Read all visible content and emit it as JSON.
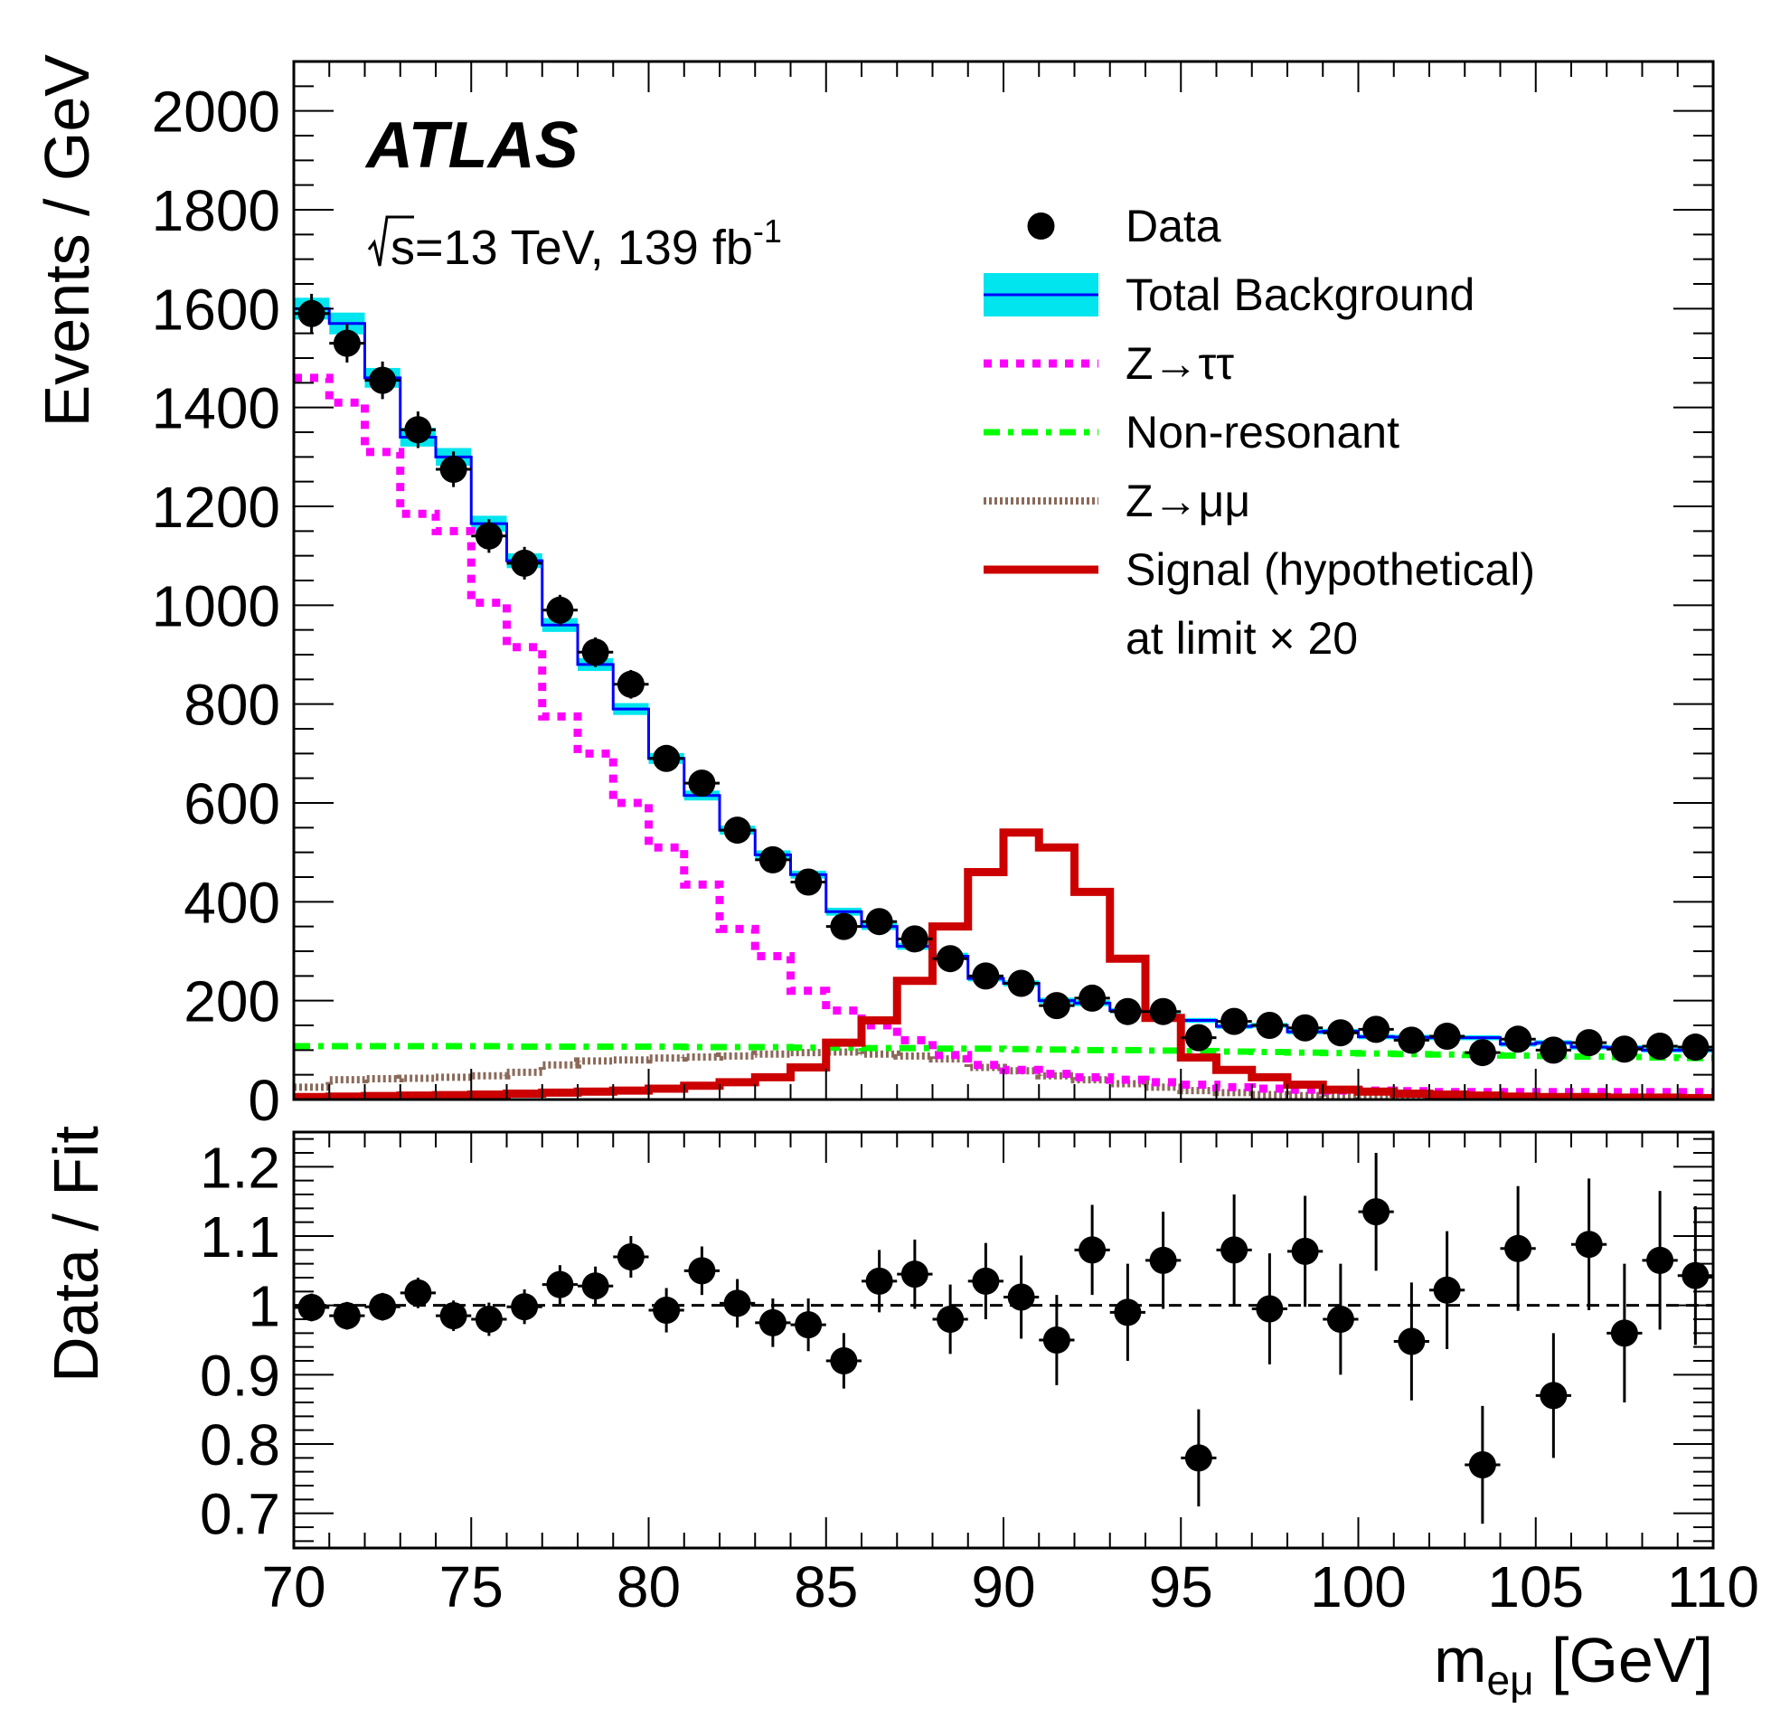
{
  "chart_data": [
    {
      "type": "line",
      "panel": "main",
      "experiment_label": "ATLAS",
      "energy_prefix": "s=13 TeV, 139 fb",
      "energy_superscript": "-1",
      "ylabel": "Events / GeV",
      "xlabel": "",
      "xlim": [
        70,
        110
      ],
      "ylim": [
        0,
        2100
      ],
      "y_ticks": [
        "0",
        "200",
        "400",
        "600",
        "800",
        "1000",
        "1200",
        "1400",
        "1600",
        "1800",
        "2000"
      ],
      "legend_position": "top-right",
      "bin_edges": [
        70,
        71,
        72,
        73,
        74,
        75,
        76,
        77,
        78,
        79,
        80,
        81,
        82,
        83,
        84,
        85,
        86,
        87,
        88,
        89,
        90,
        91,
        92,
        93,
        94,
        95,
        96,
        97,
        98,
        99,
        100,
        101,
        102,
        103,
        104,
        105,
        106,
        107,
        108,
        109,
        110
      ],
      "series": [
        {
          "name": "Data",
          "style": "points",
          "color": "#000000",
          "x": [
            70.5,
            71.5,
            72.5,
            73.5,
            74.5,
            75.5,
            76.5,
            77.5,
            78.5,
            79.5,
            80.5,
            81.5,
            82.5,
            83.5,
            84.5,
            85.5,
            86.5,
            87.5,
            88.5,
            89.5,
            90.5,
            91.5,
            92.5,
            93.5,
            94.5,
            95.5,
            96.5,
            97.5,
            98.5,
            99.5,
            100.5,
            101.5,
            102.5,
            103.5,
            104.5,
            105.5,
            106.5,
            107.5,
            108.5,
            109.5
          ],
          "values": [
            1590,
            1530,
            1455,
            1355,
            1275,
            1140,
            1085,
            990,
            905,
            840,
            690,
            640,
            545,
            485,
            440,
            350,
            360,
            325,
            285,
            250,
            235,
            190,
            205,
            178,
            178,
            125,
            158,
            150,
            145,
            135,
            142,
            120,
            128,
            95,
            122,
            100,
            115,
            102,
            108,
            106
          ],
          "errors": [
            40,
            39,
            38,
            37,
            36,
            34,
            33,
            31,
            30,
            29,
            26,
            25,
            23,
            22,
            21,
            19,
            19,
            18,
            17,
            16,
            15,
            14,
            14,
            13,
            13,
            11,
            13,
            12,
            12,
            12,
            12,
            11,
            11,
            10,
            11,
            10,
            11,
            10,
            10,
            10
          ]
        },
        {
          "name": "Total Background",
          "style": "step",
          "color": "#0000ff",
          "band_color": "#00e5ee",
          "values": [
            1600,
            1570,
            1460,
            1340,
            1300,
            1165,
            1090,
            960,
            880,
            790,
            690,
            615,
            545,
            495,
            455,
            380,
            350,
            310,
            290,
            245,
            235,
            200,
            195,
            180,
            170,
            160,
            148,
            150,
            137,
            138,
            127,
            126,
            125,
            125,
            112,
            115,
            106,
            105,
            100,
            100
          ],
          "errors": [
            22,
            22,
            20,
            19,
            18,
            16,
            15,
            14,
            13,
            12,
            11,
            10,
            9,
            9,
            8,
            8,
            7,
            7,
            7,
            6,
            6,
            6,
            6,
            5,
            5,
            5,
            5,
            5,
            5,
            5,
            5,
            5,
            5,
            5,
            5,
            5,
            5,
            5,
            5,
            5
          ]
        },
        {
          "name": "Z→ττ",
          "style": "dotted-step",
          "color": "#ff00ff",
          "values": [
            1460,
            1410,
            1310,
            1185,
            1150,
            1005,
            915,
            775,
            700,
            600,
            510,
            435,
            345,
            290,
            220,
            180,
            150,
            120,
            90,
            70,
            60,
            52,
            45,
            40,
            35,
            30,
            25,
            22,
            20,
            18,
            18,
            17,
            15,
            15,
            15,
            15,
            15,
            15,
            15,
            15
          ]
        },
        {
          "name": "Non-resonant",
          "style": "dash-dot",
          "color": "#00ff00",
          "values": [
            108,
            108,
            108,
            108,
            108,
            108,
            107,
            107,
            107,
            107,
            107,
            106,
            106,
            106,
            105,
            105,
            104,
            104,
            103,
            103,
            102,
            101,
            100,
            100,
            99,
            98,
            97,
            96,
            95,
            94,
            93,
            92,
            91,
            90,
            89,
            88,
            87,
            86,
            85,
            84
          ]
        },
        {
          "name": "Z→μμ",
          "style": "dense-dot",
          "color": "#8b6a5a",
          "values": [
            25,
            40,
            42,
            43,
            45,
            48,
            55,
            70,
            78,
            80,
            84,
            86,
            88,
            92,
            95,
            96,
            92,
            88,
            82,
            65,
            58,
            48,
            40,
            32,
            25,
            18,
            14,
            10,
            8,
            6,
            5,
            4,
            4,
            3,
            3,
            3,
            2,
            2,
            2,
            2
          ]
        },
        {
          "name": "Signal (hypothetical) at limit × 20",
          "style": "step",
          "color": "#cc0000",
          "values": [
            5,
            6,
            7,
            8,
            9,
            10,
            12,
            14,
            16,
            18,
            22,
            28,
            35,
            45,
            65,
            115,
            160,
            240,
            350,
            460,
            540,
            510,
            420,
            285,
            165,
            85,
            60,
            45,
            30,
            20,
            16,
            12,
            10,
            8,
            6,
            5,
            5,
            4,
            4,
            3
          ]
        }
      ],
      "legend_entries": [
        {
          "label": "Data",
          "style": "marker"
        },
        {
          "label": "Total Background",
          "style": "band-line"
        },
        {
          "label": "Z→ττ",
          "style": "dotted"
        },
        {
          "label": "Non-resonant",
          "style": "dash-dot"
        },
        {
          "label": "Z→μμ",
          "style": "dense-dot"
        },
        {
          "label": "Signal (hypothetical)",
          "style": "thick-line"
        },
        {
          "label": "at limit × 20",
          "style": "continuation"
        }
      ]
    },
    {
      "type": "scatter",
      "panel": "ratio",
      "ylabel": "Data / Fit",
      "xlabel": "m_eμ [GeV]",
      "xlabel_main": "m",
      "xlabel_sub": "eμ",
      "xlabel_unit": " [GeV]",
      "xlim": [
        70,
        110
      ],
      "ylim": [
        0.65,
        1.25
      ],
      "reference_line": 1.0,
      "x_ticks": [
        "70",
        "75",
        "80",
        "85",
        "90",
        "95",
        "100",
        "105",
        "110"
      ],
      "y_ticks": [
        "0.7",
        "0.8",
        "0.9",
        "1",
        "1.1",
        "1.2"
      ],
      "x": [
        70.5,
        71.5,
        72.5,
        73.5,
        74.5,
        75.5,
        76.5,
        77.5,
        78.5,
        79.5,
        80.5,
        81.5,
        82.5,
        83.5,
        84.5,
        85.5,
        86.5,
        87.5,
        88.5,
        89.5,
        90.5,
        91.5,
        92.5,
        93.5,
        94.5,
        95.5,
        96.5,
        97.5,
        98.5,
        99.5,
        100.5,
        101.5,
        102.5,
        103.5,
        104.5,
        105.5,
        106.5,
        107.5,
        108.5,
        109.5
      ],
      "values": [
        0.997,
        0.985,
        0.998,
        1.018,
        0.985,
        0.98,
        0.998,
        1.03,
        1.028,
        1.07,
        0.993,
        1.05,
        1.003,
        0.975,
        0.972,
        0.92,
        1.035,
        1.045,
        0.98,
        1.035,
        1.012,
        0.95,
        1.08,
        0.99,
        1.065,
        0.78,
        1.08,
        0.995,
        1.078,
        0.98,
        1.135,
        0.948,
        1.022,
        0.77,
        1.082,
        0.87,
        1.088,
        0.96,
        1.065,
        1.043
      ],
      "errors": [
        0.02,
        0.02,
        0.02,
        0.022,
        0.022,
        0.024,
        0.025,
        0.028,
        0.028,
        0.03,
        0.032,
        0.035,
        0.035,
        0.035,
        0.038,
        0.04,
        0.045,
        0.05,
        0.05,
        0.055,
        0.06,
        0.065,
        0.065,
        0.07,
        0.07,
        0.07,
        0.08,
        0.08,
        0.08,
        0.08,
        0.085,
        0.085,
        0.085,
        0.085,
        0.09,
        0.09,
        0.095,
        0.1,
        0.1,
        0.1
      ]
    }
  ]
}
